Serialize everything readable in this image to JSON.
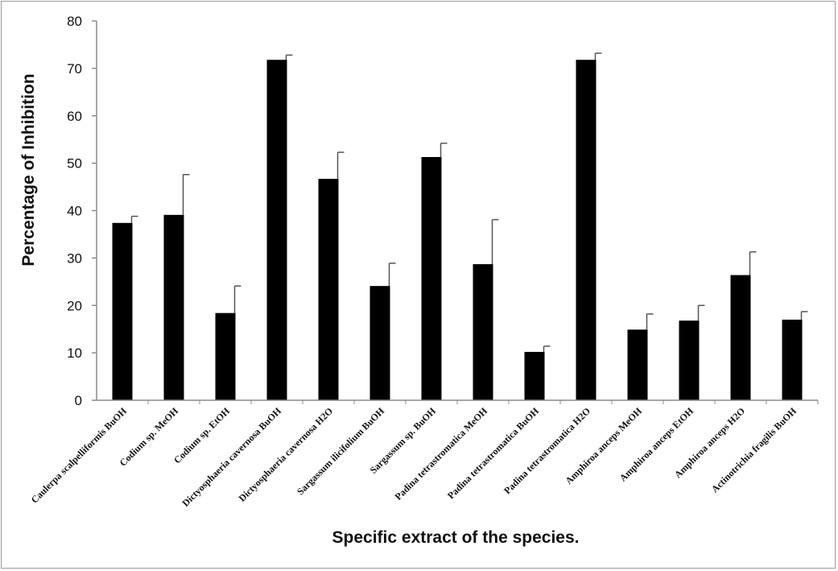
{
  "chart_data": {
    "type": "bar",
    "title": "",
    "xlabel": "Specific extract of the species.",
    "ylabel": "Percentage of Inhibition",
    "ylim": [
      0,
      80
    ],
    "yticks": [
      0,
      10,
      20,
      30,
      40,
      50,
      60,
      70,
      80
    ],
    "grid": false,
    "legend": "none",
    "bar_color": "#000000",
    "categories": [
      "Caulerpa scalpelliformis BuOH",
      "Codium sp. MeOH",
      "Codium sp. EtOH",
      "Dictyosphaeria cavernosa BuOH",
      "Dictyosphaeria cavernosa H2O",
      "Sargassum ilicifolium BuOH",
      "Sargassum sp. BuOH",
      "Padina tetrastromatica MeOH",
      "Padina tetrastromatica BuOH",
      "Padina tetrastromatica H2O",
      "Amphiroa anceps MeOH",
      "Amphiroa anceps EtOH",
      "Amphiroa anceps H2O",
      "Actinotrichia fragilis BuOH"
    ],
    "values": [
      37.4,
      39.1,
      18.4,
      71.8,
      46.7,
      24.1,
      51.3,
      28.7,
      10.2,
      71.8,
      14.9,
      16.8,
      26.4,
      17.0
    ],
    "errors": [
      1.4,
      8.5,
      5.7,
      1.0,
      5.6,
      4.8,
      2.9,
      9.4,
      1.2,
      1.4,
      3.3,
      3.2,
      4.9,
      1.7
    ]
  }
}
